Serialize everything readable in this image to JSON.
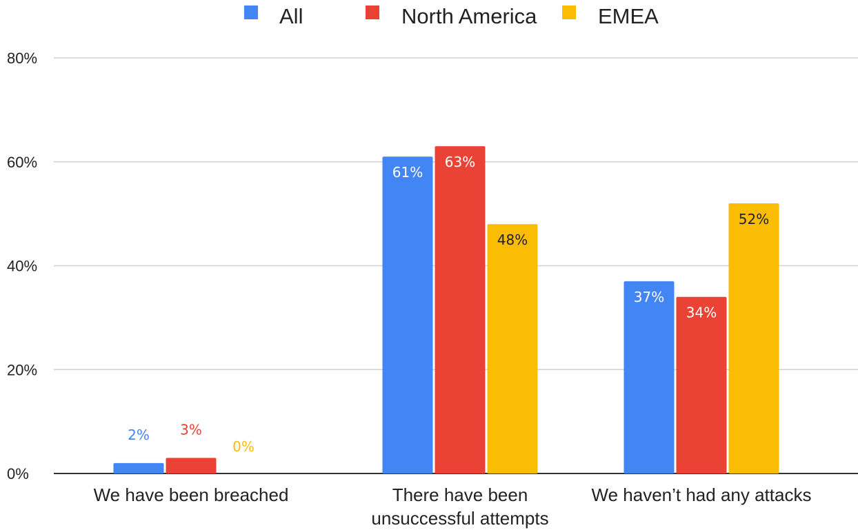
{
  "chart_data": {
    "type": "bar",
    "categories": [
      [
        "We have been breached"
      ],
      [
        "There have been",
        "unsuccessful attempts"
      ],
      [
        "We haven’t had any attacks"
      ]
    ],
    "series": [
      {
        "name": "All",
        "color": "#4285f4",
        "values": [
          2,
          61,
          37
        ],
        "labels": [
          "2%",
          "61%",
          "37%"
        ]
      },
      {
        "name": "North America",
        "color": "#ea4335",
        "values": [
          3,
          63,
          34
        ],
        "labels": [
          "3%",
          "63%",
          "34%"
        ]
      },
      {
        "name": "EMEA",
        "color": "#fbbc04",
        "values": [
          0,
          48,
          52
        ],
        "labels": [
          "0%",
          "48%",
          "52%"
        ]
      }
    ],
    "ylim": [
      0,
      80
    ],
    "yticks": [
      0,
      20,
      40,
      60,
      80
    ],
    "ytick_labels": [
      "0%",
      "20%",
      "40%",
      "60%",
      "80%"
    ],
    "legend_position": "top-center",
    "grid": true
  }
}
